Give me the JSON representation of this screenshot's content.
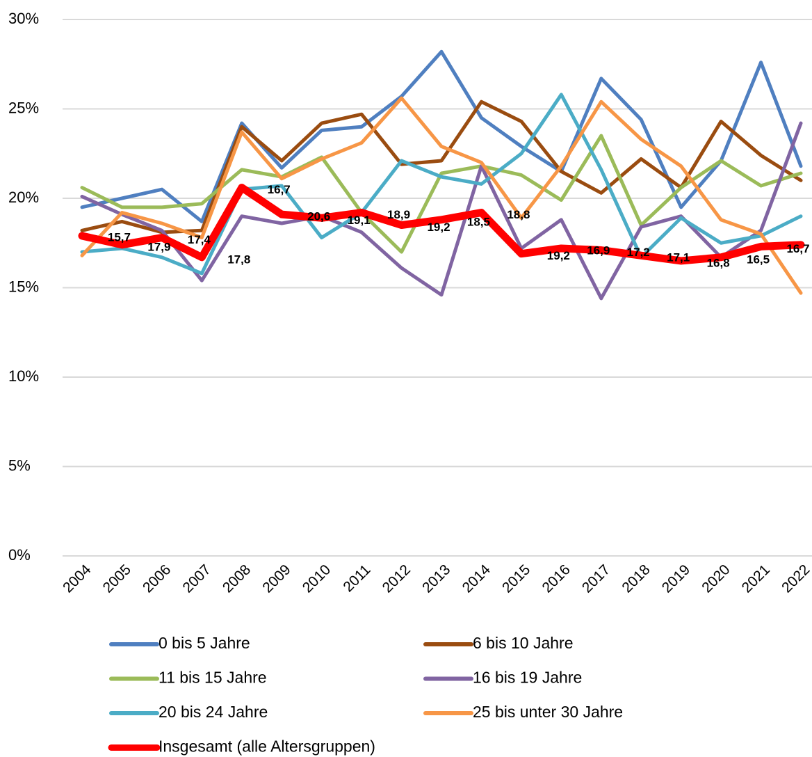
{
  "chart_data": {
    "type": "line",
    "categories": [
      "2004",
      "2005",
      "2006",
      "2007",
      "2008",
      "2009",
      "2010",
      "2011",
      "2012",
      "2013",
      "2014",
      "2015",
      "2016",
      "2017",
      "2018",
      "2019",
      "2020",
      "2021",
      "2022"
    ],
    "ylim": [
      0,
      30
    ],
    "yticks": [
      {
        "value": 0,
        "label": "0%"
      },
      {
        "value": 5,
        "label": "5%"
      },
      {
        "value": 10,
        "label": "10%"
      },
      {
        "value": 15,
        "label": "15%"
      },
      {
        "value": 20,
        "label": "20%"
      },
      {
        "value": 25,
        "label": "25%"
      },
      {
        "value": 30,
        "label": "30%"
      }
    ],
    "grid": true,
    "legend": "bottom",
    "annotations": [
      "15,7"
    ],
    "series": [
      {
        "name": "0 bis 5 Jahre",
        "color": "#4f7fc0",
        "values": [
          19.5,
          20.0,
          20.5,
          18.7,
          24.2,
          21.7,
          23.8,
          24.0,
          25.7,
          28.2,
          24.5,
          22.9,
          21.5,
          26.7,
          24.4,
          19.5,
          22.1,
          27.6,
          21.8
        ]
      },
      {
        "name": "6 bis 10 Jahre",
        "color": "#9a4c10",
        "values": [
          18.2,
          18.7,
          18.1,
          18.2,
          24.0,
          22.1,
          24.2,
          24.7,
          21.9,
          22.1,
          25.4,
          24.3,
          21.5,
          20.3,
          22.2,
          20.6,
          24.3,
          22.4,
          21.0
        ]
      },
      {
        "name": "11 bis 15 Jahre",
        "color": "#9bbb59",
        "values": [
          20.6,
          19.5,
          19.5,
          19.7,
          21.6,
          21.2,
          22.3,
          19.2,
          17.0,
          21.4,
          21.8,
          21.3,
          19.9,
          23.5,
          18.5,
          20.6,
          22.1,
          20.7,
          21.4
        ]
      },
      {
        "name": "16 bis 19 Jahre",
        "color": "#8064a2",
        "values": [
          20.1,
          19.1,
          18.2,
          15.4,
          19.0,
          18.6,
          19.0,
          18.1,
          16.1,
          14.6,
          21.8,
          17.2,
          18.8,
          14.4,
          18.4,
          19.0,
          16.7,
          18.2,
          24.2
        ]
      },
      {
        "name": "20 bis 24 Jahre",
        "color": "#4bacc6",
        "values": [
          17.0,
          17.2,
          16.7,
          15.8,
          20.5,
          20.7,
          17.8,
          19.2,
          22.1,
          21.2,
          20.8,
          22.5,
          25.8,
          21.6,
          16.7,
          18.9,
          17.5,
          17.9,
          19.0
        ]
      },
      {
        "name": "25 bis unter 30 Jahre",
        "color": "#f79646",
        "values": [
          16.8,
          19.2,
          18.6,
          17.8,
          23.7,
          21.1,
          22.2,
          23.1,
          25.6,
          22.9,
          22.0,
          18.9,
          21.8,
          25.4,
          23.3,
          21.8,
          18.8,
          18.0,
          14.7
        ]
      },
      {
        "name": "Insgesamt (alle Altersgruppen)",
        "color": "#ff0000",
        "values": [
          17.9,
          17.4,
          17.8,
          16.7,
          20.6,
          19.1,
          18.9,
          19.2,
          18.5,
          18.8,
          19.2,
          16.9,
          17.2,
          17.1,
          16.8,
          16.5,
          16.7,
          17.3,
          17.4
        ],
        "value_labels": [
          "17,9",
          "17,4",
          "17,8",
          "16,7",
          "20,6",
          "19,1",
          "18,9",
          "19,2",
          "18,5",
          "18,8",
          "19,2",
          "16,9",
          "17,2",
          "17,1",
          "16,8",
          "16,5",
          "16,7",
          null,
          null
        ]
      }
    ]
  }
}
